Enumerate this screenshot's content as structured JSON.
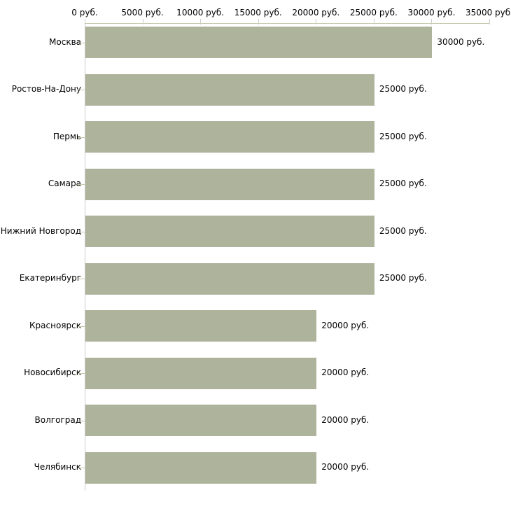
{
  "chart_data": {
    "type": "bar",
    "orientation": "horizontal",
    "title": "",
    "xlabel": "",
    "ylabel": "",
    "unit": "руб.",
    "categories": [
      "Москва",
      "Ростов-На-Дону",
      "Пермь",
      "Самара",
      "Нижний Новгород",
      "Екатеринбург",
      "Красноярск",
      "Новосибирск",
      "Волгоград",
      "Челябинск"
    ],
    "values": [
      30000,
      25000,
      25000,
      25000,
      25000,
      25000,
      20000,
      20000,
      20000,
      20000
    ],
    "value_labels": [
      "30000 руб.",
      "25000 руб.",
      "25000 руб.",
      "25000 руб.",
      "25000 руб.",
      "25000 руб.",
      "20000 руб.",
      "20000 руб.",
      "20000 руб.",
      "20000 руб."
    ],
    "x_axis": {
      "position": "top",
      "range": [
        0,
        35000
      ],
      "ticks": [
        0,
        5000,
        10000,
        15000,
        20000,
        25000,
        30000,
        35000
      ],
      "tick_labels": [
        "0 руб.",
        "5000 руб.",
        "10000 руб.",
        "15000 руб.",
        "20000 руб.",
        "25000 руб.",
        "30000 руб.",
        "35000 руб."
      ]
    },
    "legend": null,
    "grid": false,
    "colors": {
      "bar": "#aeb39c",
      "axis_line": "#c8c8aa",
      "tick": "#cccccc",
      "text": "#000000",
      "background": "#ffffff"
    }
  }
}
